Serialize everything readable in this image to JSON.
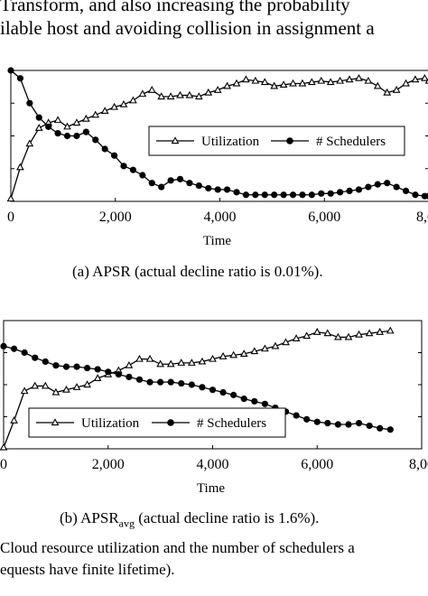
{
  "text": {
    "para_line1": "Transform, and also increasing the probability",
    "para_line2": "ilable host and avoiding collision in assignment a",
    "caption_a": "(a) APSR (actual decline ratio is 0.01%).",
    "caption_b_prefix": "(b) APSR",
    "caption_b_sub": "avg",
    "caption_b_suffix": " (actual decline ratio is 1.6%).",
    "figure_line1": "Cloud resource utilization and the number of schedulers a",
    "figure_line2": "equests have finite lifetime)."
  },
  "chart_data": [
    {
      "type": "line",
      "xlabel": "Time",
      "x_ticks": [
        "0",
        "2,000",
        "4,000",
        "6,000",
        "8,00"
      ],
      "xlim": [
        0,
        8000
      ],
      "ylim": [
        0,
        1
      ],
      "legend_position": "right-middle",
      "series": [
        {
          "name": "Utilization",
          "marker": "triangle",
          "x": [
            0,
            180,
            360,
            540,
            720,
            900,
            1080,
            1260,
            1440,
            1620,
            1800,
            1980,
            2160,
            2340,
            2520,
            2700,
            2880,
            3060,
            3240,
            3420,
            3600,
            3780,
            3960,
            4140,
            4320,
            4500,
            4680,
            4860,
            5040,
            5220,
            5400,
            5580,
            5760,
            5940,
            6120,
            6300,
            6480,
            6660,
            6840,
            7020,
            7200,
            7380,
            7560,
            7740,
            7920,
            8000
          ],
          "y": [
            0.02,
            0.26,
            0.44,
            0.56,
            0.6,
            0.62,
            0.57,
            0.6,
            0.63,
            0.66,
            0.69,
            0.72,
            0.74,
            0.77,
            0.82,
            0.85,
            0.8,
            0.8,
            0.81,
            0.81,
            0.8,
            0.83,
            0.85,
            0.88,
            0.9,
            0.93,
            0.92,
            0.91,
            0.88,
            0.89,
            0.9,
            0.9,
            0.91,
            0.92,
            0.91,
            0.92,
            0.93,
            0.94,
            0.92,
            0.88,
            0.83,
            0.85,
            0.9,
            0.93,
            0.94,
            0.92
          ]
        },
        {
          "name": "# Schedulers",
          "marker": "circle",
          "x": [
            0,
            180,
            360,
            540,
            720,
            900,
            1080,
            1260,
            1440,
            1620,
            1800,
            1980,
            2160,
            2340,
            2520,
            2700,
            2880,
            3060,
            3240,
            3420,
            3600,
            3780,
            3960,
            4140,
            4320,
            4500,
            4680,
            4860,
            5040,
            5220,
            5400,
            5580,
            5760,
            5940,
            6120,
            6300,
            6480,
            6660,
            6840,
            7020,
            7200,
            7380,
            7560,
            7740,
            7920,
            8000
          ],
          "y": [
            1.0,
            0.94,
            0.75,
            0.64,
            0.57,
            0.52,
            0.5,
            0.5,
            0.53,
            0.47,
            0.4,
            0.35,
            0.27,
            0.24,
            0.2,
            0.14,
            0.11,
            0.16,
            0.17,
            0.14,
            0.12,
            0.1,
            0.09,
            0.09,
            0.07,
            0.05,
            0.05,
            0.05,
            0.05,
            0.05,
            0.05,
            0.05,
            0.05,
            0.06,
            0.06,
            0.07,
            0.08,
            0.09,
            0.11,
            0.13,
            0.14,
            0.11,
            0.08,
            0.05,
            0.04,
            0.04
          ]
        }
      ]
    },
    {
      "type": "line",
      "xlabel": "Time",
      "x_ticks": [
        "0",
        "2,000",
        "4,000",
        "6,000",
        "8,00"
      ],
      "xlim": [
        0,
        8000
      ],
      "ylim": [
        0,
        1
      ],
      "legend_position": "lower-middle",
      "series": [
        {
          "name": "Utilization",
          "marker": "triangle",
          "x": [
            0,
            200,
            400,
            600,
            800,
            1000,
            1200,
            1400,
            1600,
            1800,
            2000,
            2200,
            2400,
            2600,
            2800,
            3000,
            3200,
            3400,
            3600,
            3800,
            4000,
            4200,
            4400,
            4600,
            4800,
            5000,
            5200,
            5400,
            5600,
            5800,
            6000,
            6200,
            6400,
            6600,
            6800,
            7000,
            7200,
            7400
          ],
          "y": [
            0.01,
            0.22,
            0.45,
            0.49,
            0.49,
            0.44,
            0.46,
            0.48,
            0.5,
            0.55,
            0.58,
            0.61,
            0.65,
            0.7,
            0.7,
            0.66,
            0.66,
            0.67,
            0.67,
            0.68,
            0.7,
            0.72,
            0.73,
            0.74,
            0.76,
            0.78,
            0.8,
            0.83,
            0.86,
            0.88,
            0.91,
            0.9,
            0.87,
            0.87,
            0.89,
            0.9,
            0.91,
            0.92
          ]
        },
        {
          "name": "# Schedulers",
          "marker": "circle",
          "x": [
            0,
            200,
            400,
            600,
            800,
            1000,
            1200,
            1400,
            1600,
            1800,
            2000,
            2200,
            2400,
            2600,
            2800,
            3000,
            3200,
            3400,
            3600,
            3800,
            4000,
            4200,
            4400,
            4600,
            4800,
            5000,
            5200,
            5400,
            5600,
            5800,
            6000,
            6200,
            6400,
            6600,
            6800,
            7000,
            7200,
            7400
          ],
          "y": [
            0.8,
            0.78,
            0.75,
            0.71,
            0.68,
            0.65,
            0.64,
            0.64,
            0.63,
            0.62,
            0.6,
            0.58,
            0.56,
            0.54,
            0.52,
            0.52,
            0.52,
            0.51,
            0.5,
            0.48,
            0.46,
            0.44,
            0.42,
            0.39,
            0.37,
            0.35,
            0.32,
            0.29,
            0.26,
            0.23,
            0.21,
            0.2,
            0.19,
            0.19,
            0.2,
            0.18,
            0.16,
            0.15
          ]
        }
      ]
    }
  ]
}
